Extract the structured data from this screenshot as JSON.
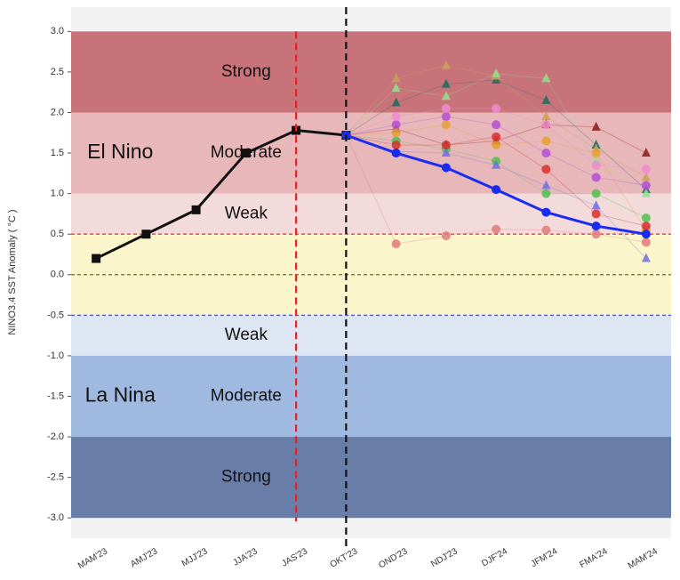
{
  "chart_data": {
    "type": "line",
    "y_axis_label": "NINO3.4 SST Anomaly ( °C )",
    "categories": [
      "MAM'23",
      "AMJ'23",
      "MJJ'23",
      "JJA'23",
      "JAS'23",
      "OKT'23",
      "OND'23",
      "NDJ'23",
      "DJF'24",
      "JFM'24",
      "FMA'24",
      "MAM'24"
    ],
    "ylim": [
      -3.25,
      3.3
    ],
    "yticks": [
      {
        "value": -3,
        "label": "-3.0"
      },
      -2.5,
      {
        "value": -2,
        "label": "-2.0"
      },
      -1.5,
      {
        "value": -1,
        "label": "-1.0"
      },
      -0.5,
      {
        "value": 0,
        "label": "0.0"
      },
      0.5,
      {
        "value": 1,
        "label": "1.0"
      },
      1.5,
      {
        "value": 2,
        "label": "2.0"
      },
      2.5,
      {
        "value": 3,
        "label": "3.0"
      }
    ],
    "bands": [
      {
        "from": 2,
        "to": 3,
        "color": "#c8737a",
        "label": "Strong"
      },
      {
        "from": 1,
        "to": 2,
        "color": "#e8b7ba",
        "label": "Moderate"
      },
      {
        "from": 0.5,
        "to": 1,
        "color": "#f3dadb",
        "label": "Weak"
      },
      {
        "from": -0.5,
        "to": 0.5,
        "color": "#fbf5cc"
      },
      {
        "from": -1,
        "to": -0.5,
        "color": "#dfe6f3",
        "label": "Weak"
      },
      {
        "from": -2,
        "to": -1,
        "color": "#a0b9e0",
        "label": "Moderate"
      },
      {
        "from": -3,
        "to": -2,
        "color": "#687ea9",
        "label": "Strong"
      }
    ],
    "regions": [
      "El Nino",
      "La Nina"
    ],
    "hlines": [
      {
        "value": 0.5,
        "color": "#e04040"
      },
      {
        "value": 0,
        "color": "#6b6b2a"
      },
      {
        "value": -0.5,
        "color": "#4050e0"
      }
    ],
    "vlines": [
      {
        "category": "JAS'23",
        "color": "#e82020"
      },
      {
        "category": "OKT'23",
        "color": "#111111"
      }
    ],
    "series": [
      {
        "color": "#111111",
        "marker": "square",
        "values": [
          0.2,
          0.5,
          0.8,
          1.5,
          1.78,
          1.72,
          null,
          null,
          null,
          null,
          null,
          null
        ]
      },
      {
        "color": "#1a2cf0",
        "marker": "circle",
        "values": [
          null,
          null,
          null,
          null,
          null,
          1.72,
          1.5,
          1.32,
          1.05,
          0.77,
          0.6,
          0.5
        ]
      }
    ],
    "ensemble": [
      {
        "color": "#1f6b5e",
        "marker": "triangle",
        "values": [
          2.12,
          2.35,
          2.4,
          2.15,
          1.6,
          1.05
        ]
      },
      {
        "color": "#c9a15a",
        "marker": "triangle",
        "values": [
          2.42,
          2.58,
          2.45,
          1.95,
          1.55,
          1.2
        ]
      },
      {
        "color": "#8fe08f",
        "marker": "triangle",
        "values": [
          2.3,
          2.2,
          2.48,
          2.42,
          1.4,
          1.0
        ]
      },
      {
        "color": "#8b1a1a",
        "marker": "triangle",
        "values": [
          1.8,
          1.6,
          1.65,
          1.85,
          1.82,
          1.5
        ]
      },
      {
        "color": "#e07a7a",
        "marker": "circle",
        "values": [
          0.38,
          0.48,
          0.56,
          0.55,
          0.5,
          0.4
        ]
      },
      {
        "color": "#b44fd6",
        "marker": "circle",
        "values": [
          1.85,
          1.95,
          1.85,
          1.5,
          1.2,
          1.1
        ]
      },
      {
        "color": "#4fc04f",
        "marker": "circle",
        "values": [
          1.65,
          1.55,
          1.4,
          1.0,
          1.0,
          0.7
        ]
      },
      {
        "color": "#f08ad0",
        "marker": "circle",
        "values": [
          1.95,
          2.05,
          2.05,
          1.85,
          1.35,
          1.3
        ]
      },
      {
        "color": "#7070e0",
        "marker": "triangle",
        "values": [
          1.52,
          1.5,
          1.35,
          1.1,
          0.85,
          0.2
        ]
      },
      {
        "color": "#e6a030",
        "marker": "circle",
        "values": [
          1.75,
          1.85,
          1.6,
          1.65,
          1.5,
          0.55
        ]
      },
      {
        "color": "#d63030",
        "marker": "circle",
        "values": [
          1.6,
          1.6,
          1.7,
          1.3,
          0.75,
          0.6
        ]
      }
    ]
  }
}
